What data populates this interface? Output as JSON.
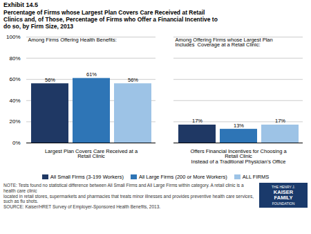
{
  "chart_data": {
    "type": "bar",
    "title": "Exhibit 14.5",
    "subtitle": "Percentage of Firms whose Largest Plan Covers Care Received at Retail\nClinics and, of Those, Percentage of Firms who Offer a Financial Incentive to\ndo so, by Firm Size, 2013",
    "categories": [
      "Largest Plan Covers Care Received at a Retail Clinic",
      "Offers Financial Incentives for Choosing a Retail Clinic\nInstead of a Traditional Physician’s Office"
    ],
    "series": [
      {
        "name": "All Small Firms (3-199 Workers)",
        "color": "#1f3864",
        "values": [
          56,
          17
        ],
        "value_labels": [
          "56%",
          "17%"
        ]
      },
      {
        "name": "All Large Firms (200 or More Workers)",
        "color": "#2e75b6",
        "values": [
          61,
          13
        ],
        "value_labels": [
          "61%",
          "13%"
        ]
      },
      {
        "name": "ALL FIRMS",
        "color": "#9dc3e6",
        "values": [
          56,
          17
        ],
        "value_labels": [
          "56%",
          "17%"
        ]
      }
    ],
    "annotations": [
      "Among Firms Offering Health Benefits:",
      "Among Offering Firms whose Largest Plan\nIncludes  Coverage at a Retail Clinic:"
    ],
    "ylim": [
      0,
      100
    ],
    "yticks": [
      {
        "value": 0,
        "label": "0%"
      },
      {
        "value": 20,
        "label": "20%"
      },
      {
        "value": 40,
        "label": "40%"
      },
      {
        "value": 60,
        "label": "60%"
      },
      {
        "value": 80,
        "label": "80%"
      },
      {
        "value": 100,
        "label": "100%"
      }
    ],
    "grid": true,
    "data_labels": true,
    "notes": [
      "NOTE: Tests found no statistical difference between All Small Firms and All Large Firms within category. A retail clinic is a health care clinic",
      "located in retail stores, supermarkets and pharmacies that treats minor illnesses and provides preventive health care services, such as flu shots.",
      "SOURCE: Kaiser/HRET Survey of Employer-Sponsored Health Benefits, 2013."
    ],
    "logo_lines": [
      "THE HENRY J.",
      "KAISER",
      "FAMILY",
      "FOUNDATION"
    ],
    "logo_color": "#1a3a6b"
  }
}
